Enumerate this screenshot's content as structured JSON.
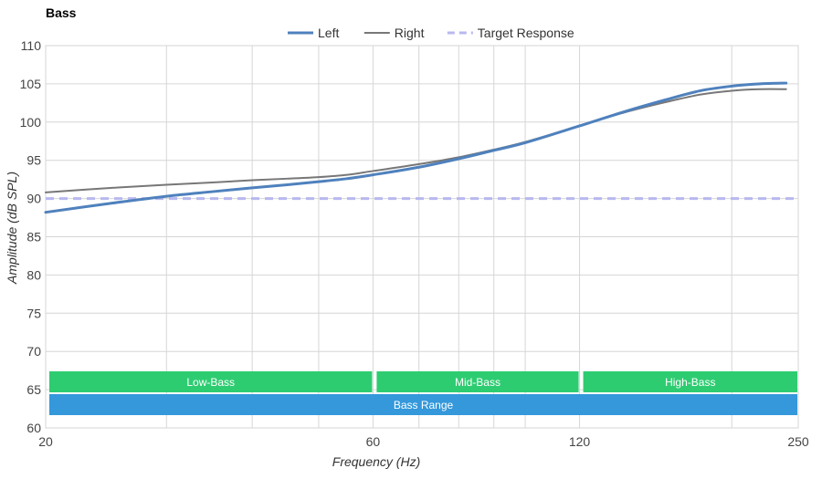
{
  "chart_data": {
    "type": "line",
    "title": "Bass",
    "xlabel": "Frequency (Hz)",
    "ylabel": "Amplitude (dB SPL)",
    "xscale": "log",
    "xlim": [
      20,
      250
    ],
    "ylim": [
      60,
      110
    ],
    "x_ticks": [
      20,
      60,
      120,
      250
    ],
    "x_gridlines": [
      20,
      30,
      40,
      50,
      60,
      70,
      80,
      90,
      100,
      120,
      200,
      250
    ],
    "y_ticks": [
      60,
      65,
      70,
      75,
      80,
      85,
      90,
      95,
      100,
      105,
      110
    ],
    "grid": true,
    "legend_position": "top-center",
    "series": [
      {
        "name": "Left",
        "color": "#4f81bd",
        "style": "solid-thick",
        "x": [
          20,
          25,
          30,
          35,
          40,
          45,
          50,
          55,
          60,
          70,
          80,
          90,
          100,
          120,
          140,
          160,
          180,
          200,
          220,
          240
        ],
        "y": [
          88.2,
          89.4,
          90.3,
          90.9,
          91.4,
          91.8,
          92.2,
          92.6,
          93.1,
          94.1,
          95.2,
          96.3,
          97.3,
          99.5,
          101.4,
          102.9,
          104.1,
          104.7,
          105.0,
          105.1
        ]
      },
      {
        "name": "Right",
        "color": "#777777",
        "style": "solid-thin",
        "x": [
          20,
          25,
          30,
          35,
          40,
          45,
          50,
          55,
          60,
          70,
          80,
          90,
          100,
          120,
          140,
          160,
          180,
          200,
          220,
          240
        ],
        "y": [
          90.8,
          91.4,
          91.8,
          92.1,
          92.4,
          92.6,
          92.8,
          93.1,
          93.6,
          94.5,
          95.4,
          96.4,
          97.4,
          99.5,
          101.3,
          102.6,
          103.6,
          104.1,
          104.3,
          104.3
        ]
      },
      {
        "name": "Target Response",
        "color": "#b8b8f0",
        "style": "dashed",
        "x": [
          20,
          248
        ],
        "y": [
          90,
          90
        ]
      }
    ],
    "bands": [
      {
        "label": "Low-Bass",
        "from": 20,
        "to": 60,
        "row": 1,
        "color": "#2ecc71"
      },
      {
        "label": "Mid-Bass",
        "from": 60,
        "to": 120,
        "row": 1,
        "color": "#2ecc71"
      },
      {
        "label": "High-Bass",
        "from": 120,
        "to": 250,
        "row": 1,
        "color": "#2ecc71"
      },
      {
        "label": "Bass Range",
        "from": 20,
        "to": 250,
        "row": 2,
        "color": "#3498db"
      }
    ]
  }
}
